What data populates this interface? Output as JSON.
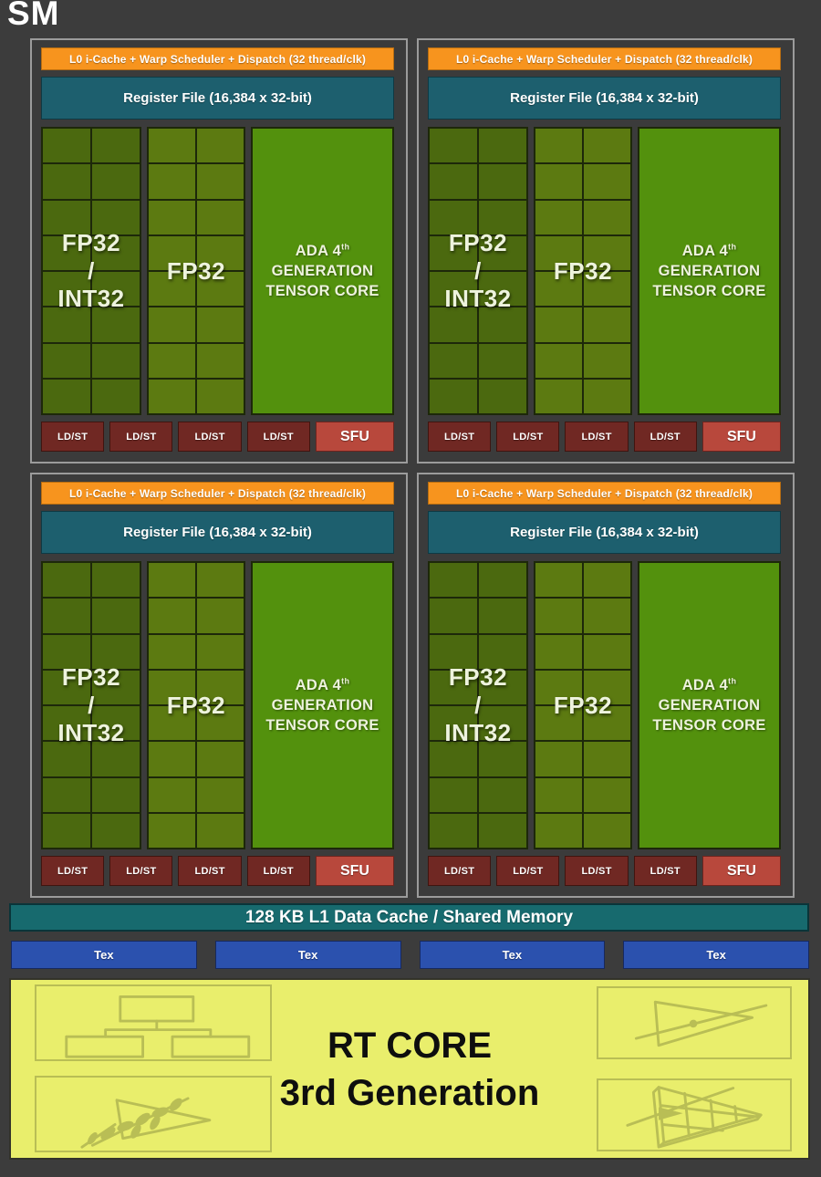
{
  "window": {
    "title": "SM"
  },
  "partitions": {
    "count": 4,
    "scheduler_label": "L0 i-Cache + Warp Scheduler + Dispatch (32 thread/clk)",
    "register_file_label": "Register File (16,384 x 32-bit)",
    "core_grid": {
      "rows": 8,
      "cols": 2
    },
    "groups": [
      {
        "name": "fp32-int32-cores",
        "lines": [
          "FP32",
          "/",
          "INT32"
        ]
      },
      {
        "name": "fp32-cores",
        "lines": [
          "FP32"
        ]
      }
    ],
    "tensor_core": {
      "line1_prefix": "ADA 4",
      "line1_sup": "th",
      "line2": "GENERATION",
      "line3": "TENSOR CORE"
    },
    "ldst_label": "LD/ST",
    "ldst_count": 4,
    "sfu_label": "SFU"
  },
  "memory": {
    "l1_label": "128 KB L1 Data Cache / Shared Memory"
  },
  "tex_units": {
    "labels": [
      "Tex",
      "Tex",
      "Tex",
      "Tex"
    ]
  },
  "rt_core": {
    "title_line1": "RT CORE",
    "title_line2": "3rd Generation",
    "icons": [
      "bvh-hierarchy-icon",
      "ray-triangle-intersection-icon",
      "opacity-micromap-foliage-icon",
      "displaced-micromesh-icon"
    ]
  },
  "colors": {
    "background": "#3c3c3c",
    "partition_border": "#9b9b9b",
    "scheduler_orange": "#f7941e",
    "register_teal": "#1d5f6e",
    "fp32_int32_green": "#4b690f",
    "fp32_green": "#5c7a11",
    "tensor_green": "#53910d",
    "ldst_maroon": "#702823",
    "sfu_red": "#b8483c",
    "l1_teal": "#176a6e",
    "tex_blue": "#2b51ae",
    "rt_yellow": "#e9ee6c",
    "rt_icon_olive": "#b9be55"
  }
}
